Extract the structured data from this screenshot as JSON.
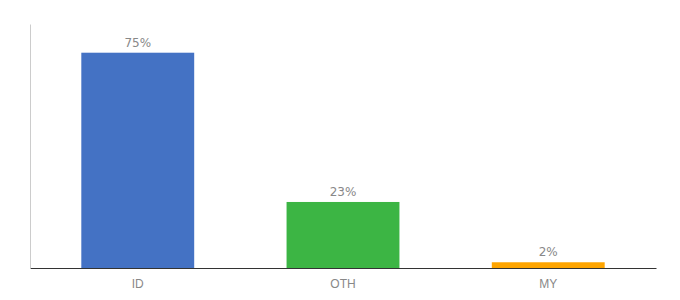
{
  "chart_data": {
    "type": "bar",
    "categories": [
      "ID",
      "OTH",
      "MY"
    ],
    "values": [
      75,
      23,
      2
    ],
    "value_labels": [
      "75%",
      "23%",
      "2%"
    ],
    "colors": [
      "#4472C4",
      "#3CB544",
      "#FFA500"
    ],
    "ylim": [
      0,
      85
    ],
    "data_labels": true,
    "tick_labels": "x",
    "grid": false
  }
}
